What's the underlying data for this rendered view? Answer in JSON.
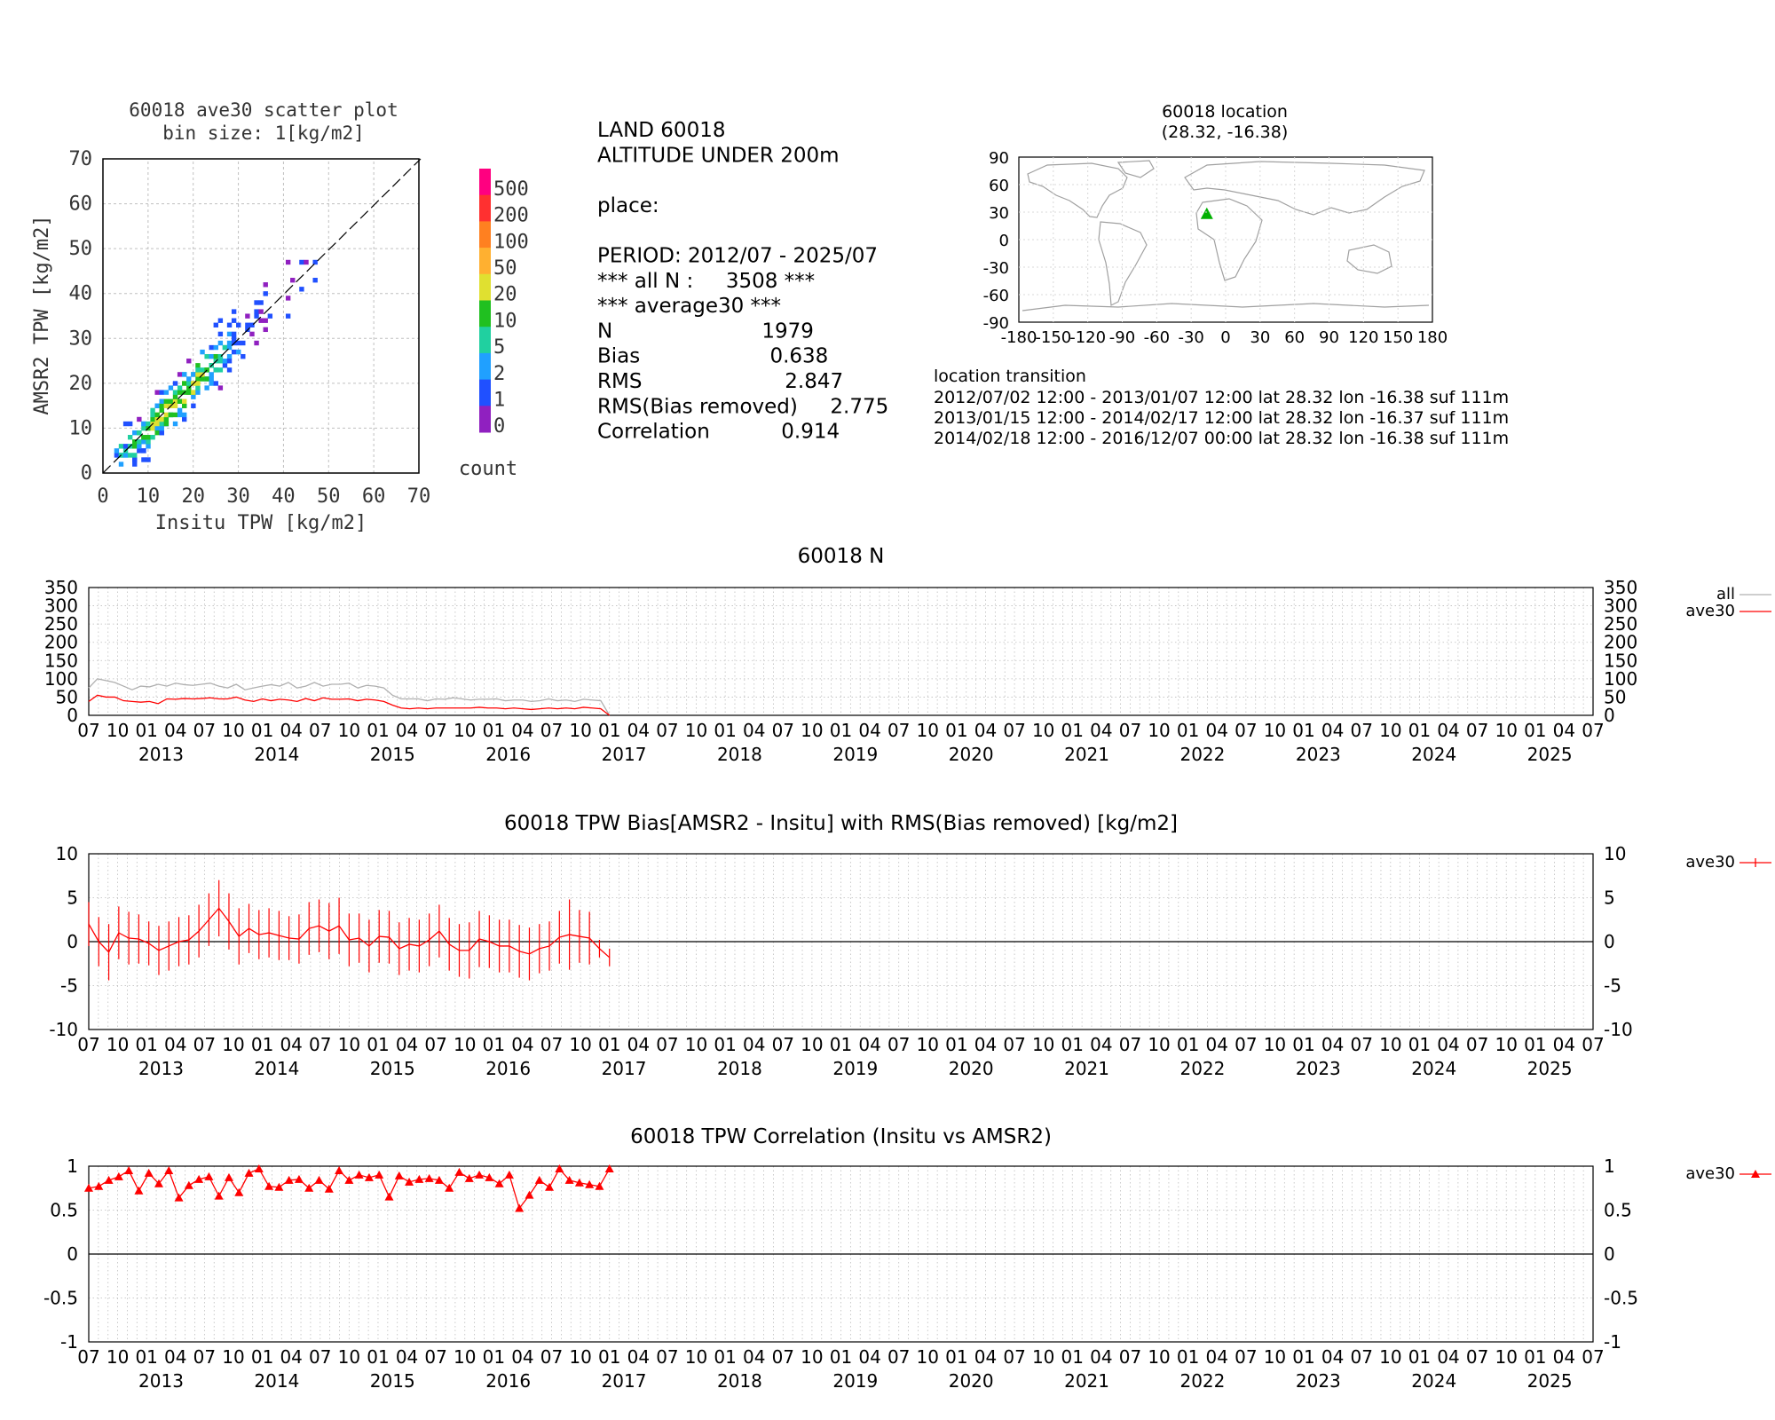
{
  "scatter": {
    "title": "60018 ave30 scatter plot",
    "subtitle": "bin size: 1[kg/m2]",
    "xlabel": "Insitu TPW [kg/m2]",
    "ylabel": "AMSR2 TPW [kg/m2]",
    "ticks": [
      "0",
      "10",
      "20",
      "30",
      "40",
      "50",
      "60",
      "70"
    ],
    "colorbar_labels": [
      "500",
      "200",
      "100",
      "50",
      "20",
      "10",
      "5",
      "2",
      "1",
      "0"
    ],
    "colorbar_colors": [
      "#ff0080",
      "#ff3030",
      "#ff8020",
      "#ffb030",
      "#e0e030",
      "#20c020",
      "#20d0a0",
      "#20a0ff",
      "#2050ff",
      "#9020c0"
    ],
    "colorbar_title": "count"
  },
  "info": {
    "lines": [
      "LAND 60018",
      "ALTITUDE UNDER 200m",
      "",
      "place:",
      "",
      "PERIOD: 2012/07 - 2025/07",
      "*** all N :     3508 ***",
      "*** average30 ***",
      "N                       1979",
      "Bias                    0.638",
      "RMS                      2.847",
      "RMS(Bias removed)     2.775",
      "Correlation           0.914"
    ]
  },
  "map": {
    "title": "60018 location",
    "subtitle": "(28.32, -16.38)",
    "lat_ticks": [
      "90",
      "60",
      "30",
      "0",
      "-30",
      "-60",
      "-90"
    ],
    "lon_ticks": [
      "-180",
      "-150",
      "-120",
      "-90",
      "-60",
      "-30",
      "0",
      "30",
      "60",
      "90",
      "120",
      "150",
      "180"
    ],
    "station_lat": 28.32,
    "station_lon": -16.38,
    "marker_color": "#00b000"
  },
  "transition": {
    "title": "location transition",
    "lines": [
      "2012/07/02 12:00 - 2013/01/07 12:00 lat 28.32 lon -16.38 suf 111m",
      "2013/01/15 12:00 - 2014/02/17 12:00 lat 28.32 lon -16.37 suf 111m",
      "2014/02/18 12:00 - 2016/12/07 00:00 lat 28.32 lon -16.38 suf 111m"
    ]
  },
  "time_axis": {
    "month_labels": [
      "07",
      "10",
      "01",
      "04",
      "07",
      "10",
      "01",
      "04",
      "07",
      "10",
      "01",
      "04",
      "07",
      "10",
      "01",
      "04",
      "07",
      "10",
      "01",
      "04",
      "07",
      "10",
      "01",
      "04",
      "07",
      "10",
      "01",
      "04",
      "07",
      "10",
      "01",
      "04",
      "07",
      "10",
      "01",
      "04",
      "07",
      "10",
      "01",
      "04",
      "07",
      "10",
      "01",
      "04",
      "07",
      "10",
      "01",
      "04",
      "07",
      "10",
      "01",
      "04",
      "07"
    ],
    "year_labels": [
      "2013",
      "2014",
      "2015",
      "2016",
      "2017",
      "2018",
      "2019",
      "2020",
      "2021",
      "2022",
      "2023",
      "2024",
      "2025"
    ]
  },
  "panels": {
    "n_title": "60018 N",
    "n_yticks": [
      "350",
      "300",
      "250",
      "200",
      "150",
      "100",
      "50",
      "0"
    ],
    "n_legend_all": "all",
    "n_legend_ave": "ave30",
    "bias_title": "60018 TPW Bias[AMSR2 - Insitu] with RMS(Bias removed) [kg/m2]",
    "bias_yticks": [
      "10",
      "5",
      "0",
      "-5",
      "-10"
    ],
    "bias_legend": "ave30",
    "corr_title": "60018 TPW Correlation (Insitu vs AMSR2)",
    "corr_yticks": [
      "1",
      "0.5",
      "0",
      "-0.5",
      "-1"
    ],
    "corr_legend": "ave30"
  },
  "chart_data": [
    {
      "type": "heatmap",
      "title": "60018 ave30 scatter plot",
      "subtitle": "bin size: 1[kg/m2]",
      "xlabel": "Insitu TPW [kg/m2]",
      "ylabel": "AMSR2 TPW [kg/m2]",
      "xlim": [
        0,
        70
      ],
      "ylim": [
        0,
        70
      ],
      "colorbar": [
        "0",
        "1",
        "2",
        "5",
        "10",
        "20",
        "50",
        "100",
        "200",
        "500"
      ],
      "note_points": [
        [
          5,
          5
        ],
        [
          8,
          10
        ],
        [
          10,
          12
        ],
        [
          12,
          14
        ],
        [
          14,
          15
        ],
        [
          15,
          16
        ],
        [
          16,
          17
        ],
        [
          18,
          19
        ],
        [
          20,
          21
        ],
        [
          22,
          22
        ],
        [
          25,
          26
        ],
        [
          28,
          28
        ],
        [
          30,
          30
        ],
        [
          35,
          34
        ],
        [
          40,
          40
        ],
        [
          45,
          44
        ]
      ]
    },
    {
      "type": "line",
      "title": "60018 N",
      "x_start": "2012-07",
      "x_end": "2025-07",
      "ylim": [
        0,
        350
      ],
      "series": [
        {
          "name": "all",
          "color": "#b0b0b0",
          "values": [
            75,
            100,
            95,
            90,
            80,
            70,
            80,
            78,
            85,
            80,
            88,
            84,
            82,
            85,
            88,
            80,
            75,
            85,
            70,
            75,
            80,
            84,
            80,
            90,
            75,
            80,
            90,
            80,
            85,
            85,
            88,
            75,
            82,
            80,
            75,
            55,
            45,
            45,
            45,
            40,
            45,
            44,
            48,
            45,
            42,
            44,
            44,
            45,
            40,
            42,
            42,
            38,
            40,
            45,
            40,
            42,
            38,
            44,
            42,
            40,
            0
          ]
        },
        {
          "name": "ave30",
          "color": "#ff0000",
          "values": [
            38,
            55,
            50,
            50,
            40,
            38,
            36,
            38,
            32,
            45,
            44,
            46,
            45,
            46,
            48,
            45,
            45,
            50,
            42,
            38,
            45,
            40,
            44,
            42,
            38,
            46,
            40,
            48,
            44,
            44,
            45,
            40,
            44,
            42,
            38,
            28,
            20,
            18,
            20,
            18,
            20,
            20,
            20,
            20,
            20,
            22,
            20,
            20,
            18,
            20,
            18,
            16,
            18,
            20,
            18,
            20,
            18,
            22,
            20,
            18,
            0
          ]
        }
      ]
    },
    {
      "type": "line",
      "title": "60018 TPW Bias[AMSR2 - Insitu] with RMS(Bias removed) [kg/m2]",
      "x_start": "2012-07",
      "x_end": "2025-07",
      "ylim": [
        -10,
        10
      ],
      "series": [
        {
          "name": "ave30",
          "color": "#ff0000",
          "values": [
            2,
            0,
            -1.2,
            1,
            0.4,
            0.3,
            -0.2,
            -1,
            -0.5,
            0,
            0.2,
            1.2,
            2.5,
            3.8,
            2.3,
            0.6,
            1.5,
            0.8,
            1,
            0.7,
            0.4,
            0.3,
            1.5,
            1.8,
            1.2,
            1.8,
            0.2,
            0.4,
            -0.5,
            0.6,
            0.5,
            -0.8,
            -0.3,
            -0.5,
            0.2,
            1.2,
            -0.3,
            -1,
            -1,
            0.3,
            0,
            -0.5,
            -0.5,
            -1.1,
            -1.4,
            -0.8,
            -0.5,
            0.5,
            0.8,
            0.6,
            0.4,
            -0.8,
            -1.8
          ],
          "error": [
            2.5,
            2.8,
            3.2,
            3,
            3,
            2.8,
            2.5,
            2.8,
            2.8,
            2.8,
            2.8,
            3,
            3,
            3.2,
            3.2,
            3.2,
            2.8,
            2.8,
            2.8,
            2.8,
            2.5,
            2.8,
            3,
            3,
            3.2,
            3.2,
            3,
            2.8,
            3,
            3,
            3,
            3,
            3,
            3,
            3,
            3,
            3,
            3,
            3.2,
            3.2,
            3,
            3,
            3,
            3,
            3,
            2.8,
            2.8,
            3,
            4,
            3,
            3,
            1,
            1
          ]
        }
      ]
    },
    {
      "type": "line",
      "title": "60018 TPW Correlation (Insitu vs AMSR2)",
      "x_start": "2012-07",
      "x_end": "2025-07",
      "ylim": [
        -1,
        1
      ],
      "series": [
        {
          "name": "ave30",
          "color": "#ff0000",
          "values": [
            0.75,
            0.77,
            0.84,
            0.88,
            0.95,
            0.72,
            0.92,
            0.8,
            0.95,
            0.64,
            0.78,
            0.85,
            0.88,
            0.66,
            0.87,
            0.7,
            0.92,
            0.97,
            0.77,
            0.76,
            0.84,
            0.85,
            0.75,
            0.84,
            0.74,
            0.95,
            0.84,
            0.9,
            0.87,
            0.9,
            0.65,
            0.89,
            0.82,
            0.85,
            0.86,
            0.84,
            0.75,
            0.93,
            0.86,
            0.9,
            0.87,
            0.8,
            0.9,
            0.52,
            0.67,
            0.84,
            0.76,
            0.97,
            0.84,
            0.81,
            0.79,
            0.77,
            0.97
          ]
        }
      ]
    }
  ]
}
